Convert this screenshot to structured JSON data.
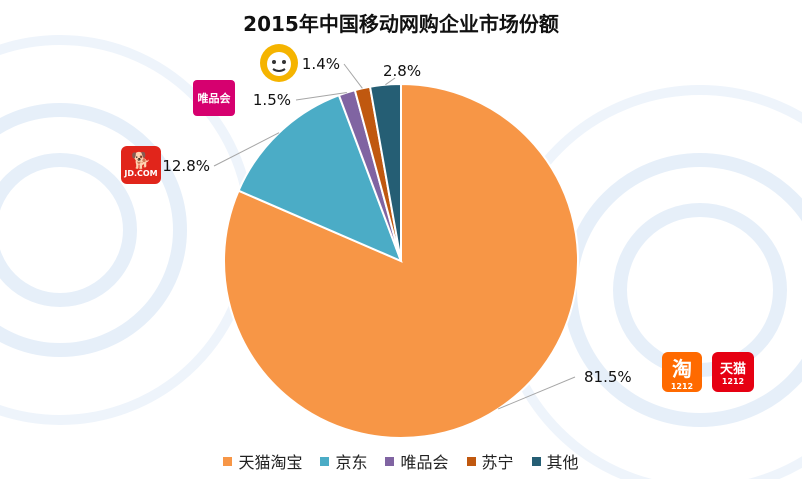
{
  "chart_data": {
    "type": "pie",
    "title": "2015年中国移动网购企业市场份额",
    "slices": [
      {
        "label": "天猫淘宝",
        "value": 81.5,
        "value_label": "81.5%",
        "color": "#f79646"
      },
      {
        "label": "京东",
        "value": 12.8,
        "value_label": "12.8%",
        "color": "#4bacc6"
      },
      {
        "label": "唯品会",
        "value": 1.5,
        "value_label": "1.5%",
        "color": "#8064a2"
      },
      {
        "label": "苏宁",
        "value": 1.4,
        "value_label": "1.4%",
        "color": "#c0580f"
      },
      {
        "label": "其他",
        "value": 2.8,
        "value_label": "2.8%",
        "color": "#255e74"
      }
    ],
    "legend_position": "bottom",
    "start_angle": "12 o'clock",
    "direction": "clockwise"
  },
  "logos": {
    "vip": {
      "text": "唯品会",
      "icon": "vipshop-logo"
    },
    "jd": {
      "text": "JD.COM",
      "icon": "jd-dog-logo"
    },
    "taobao": {
      "text": "淘",
      "sub": "1212",
      "icon": "taobao-logo"
    },
    "tmall": {
      "text": "天猫",
      "sub": "1212",
      "icon": "tmall-logo"
    },
    "suning": {
      "icon": "suning-lion-logo"
    }
  }
}
